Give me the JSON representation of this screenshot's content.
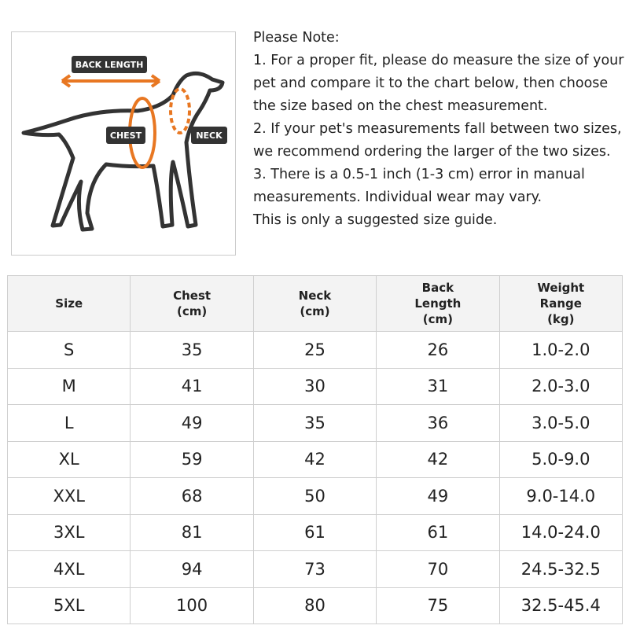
{
  "figure": {
    "labels": {
      "back_length": "BACK LENGTH",
      "chest": "CHEST",
      "neck": "NECK"
    }
  },
  "note": {
    "title": "Please Note:",
    "items": [
      "1. For a proper fit, please do measure the size of your pet and compare it to the chart below, then choose the size based on the chest measurement.",
      "2. If your pet's measurements fall between two sizes, we recommend ordering the larger of the two sizes.",
      "3. There is a 0.5-1 inch (1-3 cm) error in manual measurements. Individual wear may vary.",
      "This is only a suggested size guide."
    ]
  },
  "table": {
    "header": [
      [
        "Size"
      ],
      [
        "Chest",
        "(cm)"
      ],
      [
        "Neck",
        "(cm)"
      ],
      [
        "Back",
        "Length",
        "(cm)"
      ],
      [
        "Weight",
        "Range",
        "(kg)"
      ]
    ],
    "rows": [
      [
        "S",
        35,
        25,
        26,
        "1.0-2.0"
      ],
      [
        "M",
        41,
        30,
        31,
        "2.0-3.0"
      ],
      [
        "L",
        49,
        35,
        36,
        "3.0-5.0"
      ],
      [
        "XL",
        59,
        42,
        42,
        "5.0-9.0"
      ],
      [
        "XXL",
        68,
        50,
        49,
        "9.0-14.0"
      ],
      [
        "3XL",
        81,
        61,
        61,
        "14.0-24.0"
      ],
      [
        "4XL",
        94,
        73,
        70,
        "24.5-32.5"
      ],
      [
        "5XL",
        100,
        80,
        75,
        "32.5-45.4"
      ]
    ]
  }
}
